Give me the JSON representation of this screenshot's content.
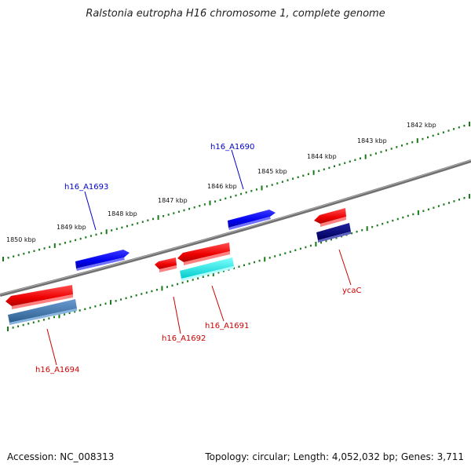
{
  "title": "Ralstonia eutropha H16 chromosome 1, complete genome",
  "footer": {
    "accession": "Accession: NC_008313",
    "summary": "Topology: circular; Length: 4,052,032 bp; Genes: 3,711"
  },
  "kbp_labels": [
    "1850 kbp",
    "1849 kbp",
    "1848 kbp",
    "1847 kbp",
    "1846 kbp",
    "1845 kbp",
    "1844 kbp",
    "1843 kbp",
    "1842 kbp"
  ],
  "genes": [
    {
      "name": "h16_A1690",
      "color": "#0000cc"
    },
    {
      "name": "h16_A1693",
      "color": "#0000cc"
    },
    {
      "name": "ycaC",
      "color": "#cc0000"
    },
    {
      "name": "h16_A1691",
      "color": "#cc0000"
    },
    {
      "name": "h16_A1692",
      "color": "#cc0000"
    },
    {
      "name": "h16_A1694",
      "color": "#cc0000"
    }
  ],
  "colors": {
    "backbone": "#808080",
    "tick": "#1a7a1a",
    "forward_cds": "#1111ee",
    "reverse_cds": "#ee1111",
    "cyan_feature": "#00e5e5",
    "navy_feature": "#0a0a80",
    "steel_feature": "#4a7fb0"
  }
}
